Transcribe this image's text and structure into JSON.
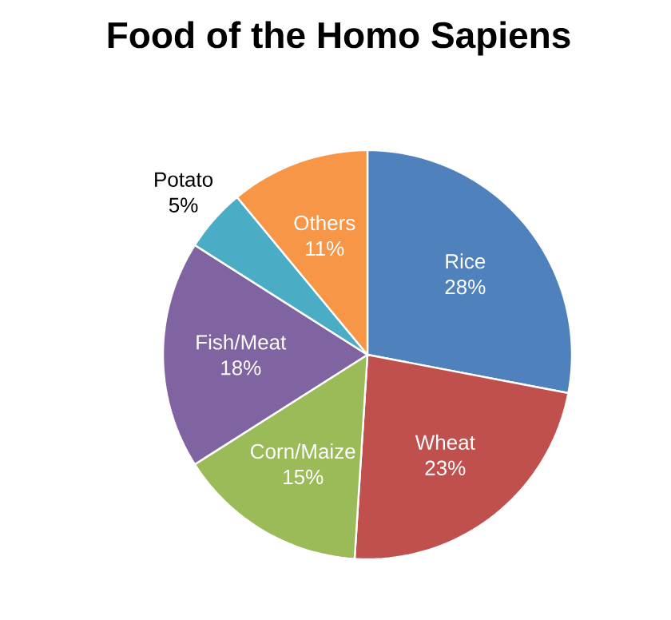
{
  "chart_data": {
    "type": "pie",
    "title": "Food of the Homo Sapiens",
    "categories": [
      "Rice",
      "Wheat",
      "Corn/Maize",
      "Fish/Meat",
      "Potato",
      "Others"
    ],
    "values": [
      28,
      23,
      15,
      18,
      5,
      11
    ],
    "value_labels": [
      "28%",
      "23%",
      "15%",
      "18%",
      "5%",
      "11%"
    ],
    "colors": [
      "#4f81bd",
      "#c0504d",
      "#9bbb59",
      "#8064a2",
      "#4bacc6",
      "#f79646"
    ]
  }
}
